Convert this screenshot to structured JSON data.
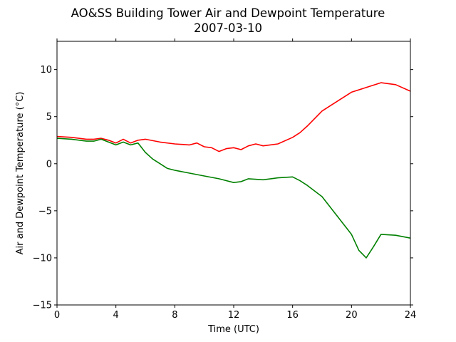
{
  "chart_data": {
    "type": "line",
    "title": "AO&SS Building Tower Air and Dewpoint Temperature",
    "subtitle": "2007-03-10",
    "xlabel": "Time (UTC)",
    "ylabel": "Air and Dewpoint Temperature (°C)",
    "xlim": [
      0,
      24
    ],
    "ylim": [
      -15,
      13
    ],
    "xticks": [
      0,
      4,
      8,
      12,
      16,
      20,
      24
    ],
    "yticks": [
      -15,
      -10,
      -5,
      0,
      5,
      10
    ],
    "grid": false,
    "legend": "none",
    "series": [
      {
        "color": "#ff0000",
        "x": [
          0,
          1,
          2,
          2.5,
          3,
          3.5,
          4,
          4.5,
          5,
          5.5,
          6,
          7,
          8,
          9,
          9.5,
          10,
          10.5,
          11,
          11.5,
          12,
          12.5,
          13,
          13.5,
          14,
          15,
          16,
          16.5,
          17,
          18,
          19,
          20,
          21,
          22,
          23,
          24
        ],
        "y": [
          2.9,
          2.8,
          2.6,
          2.6,
          2.7,
          2.5,
          2.2,
          2.6,
          2.2,
          2.5,
          2.6,
          2.3,
          2.1,
          2.0,
          2.2,
          1.8,
          1.7,
          1.3,
          1.6,
          1.7,
          1.5,
          1.9,
          2.1,
          1.9,
          2.1,
          2.8,
          3.3,
          4.0,
          5.6,
          6.6,
          7.6,
          8.1,
          8.6,
          8.4,
          7.7
        ]
      },
      {
        "color": "#008000",
        "x": [
          0,
          1,
          2,
          2.5,
          3,
          3.5,
          4,
          4.5,
          5,
          5.5,
          6,
          6.5,
          7,
          7.5,
          8,
          9,
          10,
          11,
          12,
          12.5,
          13,
          14,
          15,
          16,
          16.5,
          17,
          18,
          19,
          20,
          20.5,
          21,
          21.5,
          22,
          23,
          24
        ],
        "y": [
          2.7,
          2.6,
          2.4,
          2.4,
          2.6,
          2.3,
          2.0,
          2.3,
          2.0,
          2.2,
          1.2,
          0.5,
          0.0,
          -0.5,
          -0.7,
          -1.0,
          -1.3,
          -1.6,
          -2.0,
          -1.9,
          -1.6,
          -1.7,
          -1.5,
          -1.4,
          -1.8,
          -2.3,
          -3.5,
          -5.5,
          -7.5,
          -9.2,
          -10.0,
          -8.8,
          -7.5,
          -7.6,
          -7.9
        ]
      }
    ]
  }
}
